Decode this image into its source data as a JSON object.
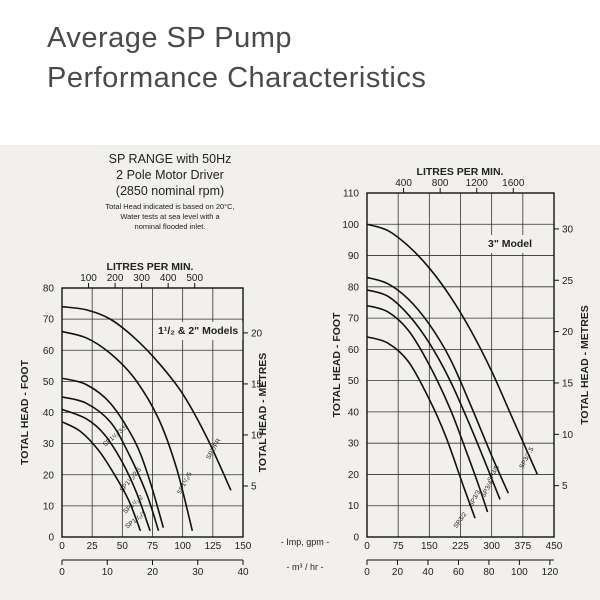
{
  "page_title": {
    "line1": "Average SP Pump",
    "line2": "Performance Characteristics"
  },
  "chart_info": {
    "heading_lines": [
      "SP RANGE with 50Hz",
      "2 Pole Motor Driver",
      "(2850 nominal rpm)"
    ],
    "note_lines": [
      "Total Head indicated is based on 20°C,",
      "Water tests at sea level with a",
      "nominal flooded inlet."
    ]
  },
  "shared_axes": {
    "imp_label": "- Imp, gpm -",
    "m3_label": "- m³ / hr -"
  },
  "chart_data": [
    {
      "type": "line",
      "model_label": "1¹/₂ & 2\" Models",
      "title": "LITRES PER MIN.",
      "xlabel": "Imp, gpm",
      "ylabel": "TOTAL HEAD - FOOT",
      "y2label": "TOTAL HEAD - METRES",
      "xlim": [
        0,
        150
      ],
      "ylim": [
        0,
        80
      ],
      "x_ticks": [
        0,
        25,
        50,
        75,
        100,
        125,
        150
      ],
      "x_tick_labels": [
        "0",
        "25",
        "50",
        "75",
        "100",
        "125",
        "150"
      ],
      "y_ticks": [
        0,
        10,
        20,
        30,
        40,
        50,
        60,
        70,
        80
      ],
      "y_tick_labels": [
        "0",
        "10",
        "20",
        "30",
        "40",
        "50",
        "60",
        "70",
        "80"
      ],
      "top_axis": {
        "max": 682,
        "ticks": [
          100,
          200,
          300,
          400,
          500
        ],
        "labels": [
          "100",
          "200",
          "300",
          "400",
          "500"
        ]
      },
      "right_axis": {
        "max": 24.4,
        "ticks": [
          5,
          10,
          15,
          20
        ],
        "labels": [
          "5",
          "10",
          "15",
          "20"
        ]
      },
      "bottom_axis": {
        "max": 40,
        "ticks": [
          0,
          10,
          20,
          30,
          40
        ],
        "labels": [
          "0",
          "10",
          "20",
          "30",
          "40"
        ]
      },
      "series": [
        {
          "name": "SP2/FR",
          "label_at": [
            127,
            28
          ],
          "label_angle": -60,
          "x": [
            0,
            20,
            40,
            60,
            80,
            100,
            120,
            140
          ],
          "y": [
            74,
            73,
            70,
            64,
            56,
            46,
            32,
            15
          ]
        },
        {
          "name": "SP1¹/₂/5",
          "label_at": [
            103,
            17
          ],
          "label_angle": -62,
          "x": [
            0,
            20,
            40,
            60,
            80,
            95,
            108
          ],
          "y": [
            66,
            64,
            59,
            51,
            38,
            22,
            2
          ]
        },
        {
          "name": "SP1¹/₂/3.5",
          "label_at": [
            45,
            32
          ],
          "label_angle": -40,
          "x": [
            0,
            20,
            40,
            60,
            72,
            84
          ],
          "y": [
            51,
            49,
            43,
            31,
            19,
            3
          ]
        },
        {
          "name": "SP1¹/₂/2.5",
          "label_at": [
            58,
            18
          ],
          "label_angle": -50,
          "x": [
            0,
            20,
            40,
            55,
            70,
            80
          ],
          "y": [
            45,
            43,
            37,
            27,
            14,
            2
          ]
        },
        {
          "name": "SP1¹/₂/2",
          "label_at": [
            60,
            10
          ],
          "label_angle": -42,
          "x": [
            0,
            20,
            35,
            50,
            62,
            73
          ],
          "y": [
            41,
            38,
            33,
            24,
            14,
            2
          ]
        },
        {
          "name": "SP1¹/₂/1",
          "label_at": [
            62,
            5
          ],
          "label_angle": -38,
          "x": [
            0,
            15,
            30,
            42,
            55,
            65
          ],
          "y": [
            37,
            34,
            28,
            21,
            12,
            2
          ]
        }
      ]
    },
    {
      "type": "line",
      "model_label": "3\" Model",
      "title": "LITRES PER MIN.",
      "xlabel": "Imp, gpm",
      "ylabel": "TOTAL HEAD - FOOT",
      "y2label": "TOTAL HEAD - METRES",
      "xlim": [
        0,
        450
      ],
      "ylim": [
        0,
        110
      ],
      "x_ticks": [
        0,
        75,
        150,
        225,
        300,
        375,
        450
      ],
      "x_tick_labels": [
        "0",
        "75",
        "150",
        "225",
        "300",
        "375",
        "450"
      ],
      "y_ticks": [
        0,
        10,
        20,
        30,
        40,
        50,
        60,
        70,
        80,
        90,
        100,
        110
      ],
      "y_tick_labels": [
        "0",
        "10",
        "20",
        "30",
        "40",
        "50",
        "60",
        "70",
        "80",
        "90",
        "100",
        "110"
      ],
      "top_axis": {
        "max": 2045,
        "ticks": [
          400,
          800,
          1200,
          1600
        ],
        "labels": [
          "400",
          "800",
          "1200",
          "1600"
        ]
      },
      "right_axis": {
        "max": 33.5,
        "ticks": [
          5,
          10,
          15,
          20,
          25,
          30
        ],
        "labels": [
          "5",
          "10",
          "15",
          "20",
          "25",
          "30"
        ]
      },
      "bottom_axis": {
        "max": 122.7,
        "ticks": [
          0,
          20,
          40,
          60,
          80,
          100,
          120
        ],
        "labels": [
          "0",
          "20",
          "40",
          "60",
          "80",
          "100",
          "120"
        ]
      },
      "series": [
        {
          "name": "SP3/7.5",
          "label_at": [
            388,
            25
          ],
          "label_angle": -62,
          "x": [
            0,
            50,
            100,
            150,
            200,
            250,
            300,
            350,
            410
          ],
          "y": [
            100,
            98,
            93,
            86,
            77,
            66,
            53,
            38,
            20
          ]
        },
        {
          "name": "SP3/5",
          "label_at": [
            308,
            20
          ],
          "label_angle": -62,
          "x": [
            0,
            50,
            100,
            150,
            200,
            250,
            300,
            340
          ],
          "y": [
            83,
            81,
            76,
            68,
            57,
            42,
            26,
            14
          ]
        },
        {
          "name": "SP3/4",
          "label_at": [
            293,
            15
          ],
          "label_angle": -62,
          "x": [
            0,
            50,
            100,
            150,
            200,
            250,
            290,
            320
          ],
          "y": [
            79,
            77,
            71,
            62,
            50,
            35,
            22,
            12
          ]
        },
        {
          "name": "SP3/3",
          "label_at": [
            263,
            12
          ],
          "label_angle": -62,
          "x": [
            0,
            50,
            100,
            150,
            200,
            240,
            270,
            290
          ],
          "y": [
            74,
            72,
            66,
            55,
            41,
            27,
            16,
            8
          ]
        },
        {
          "name": "SP3/2",
          "label_at": [
            228,
            5
          ],
          "label_angle": -55,
          "x": [
            0,
            50,
            100,
            150,
            190,
            230,
            260
          ],
          "y": [
            64,
            62,
            56,
            44,
            32,
            17,
            6
          ]
        }
      ]
    }
  ]
}
